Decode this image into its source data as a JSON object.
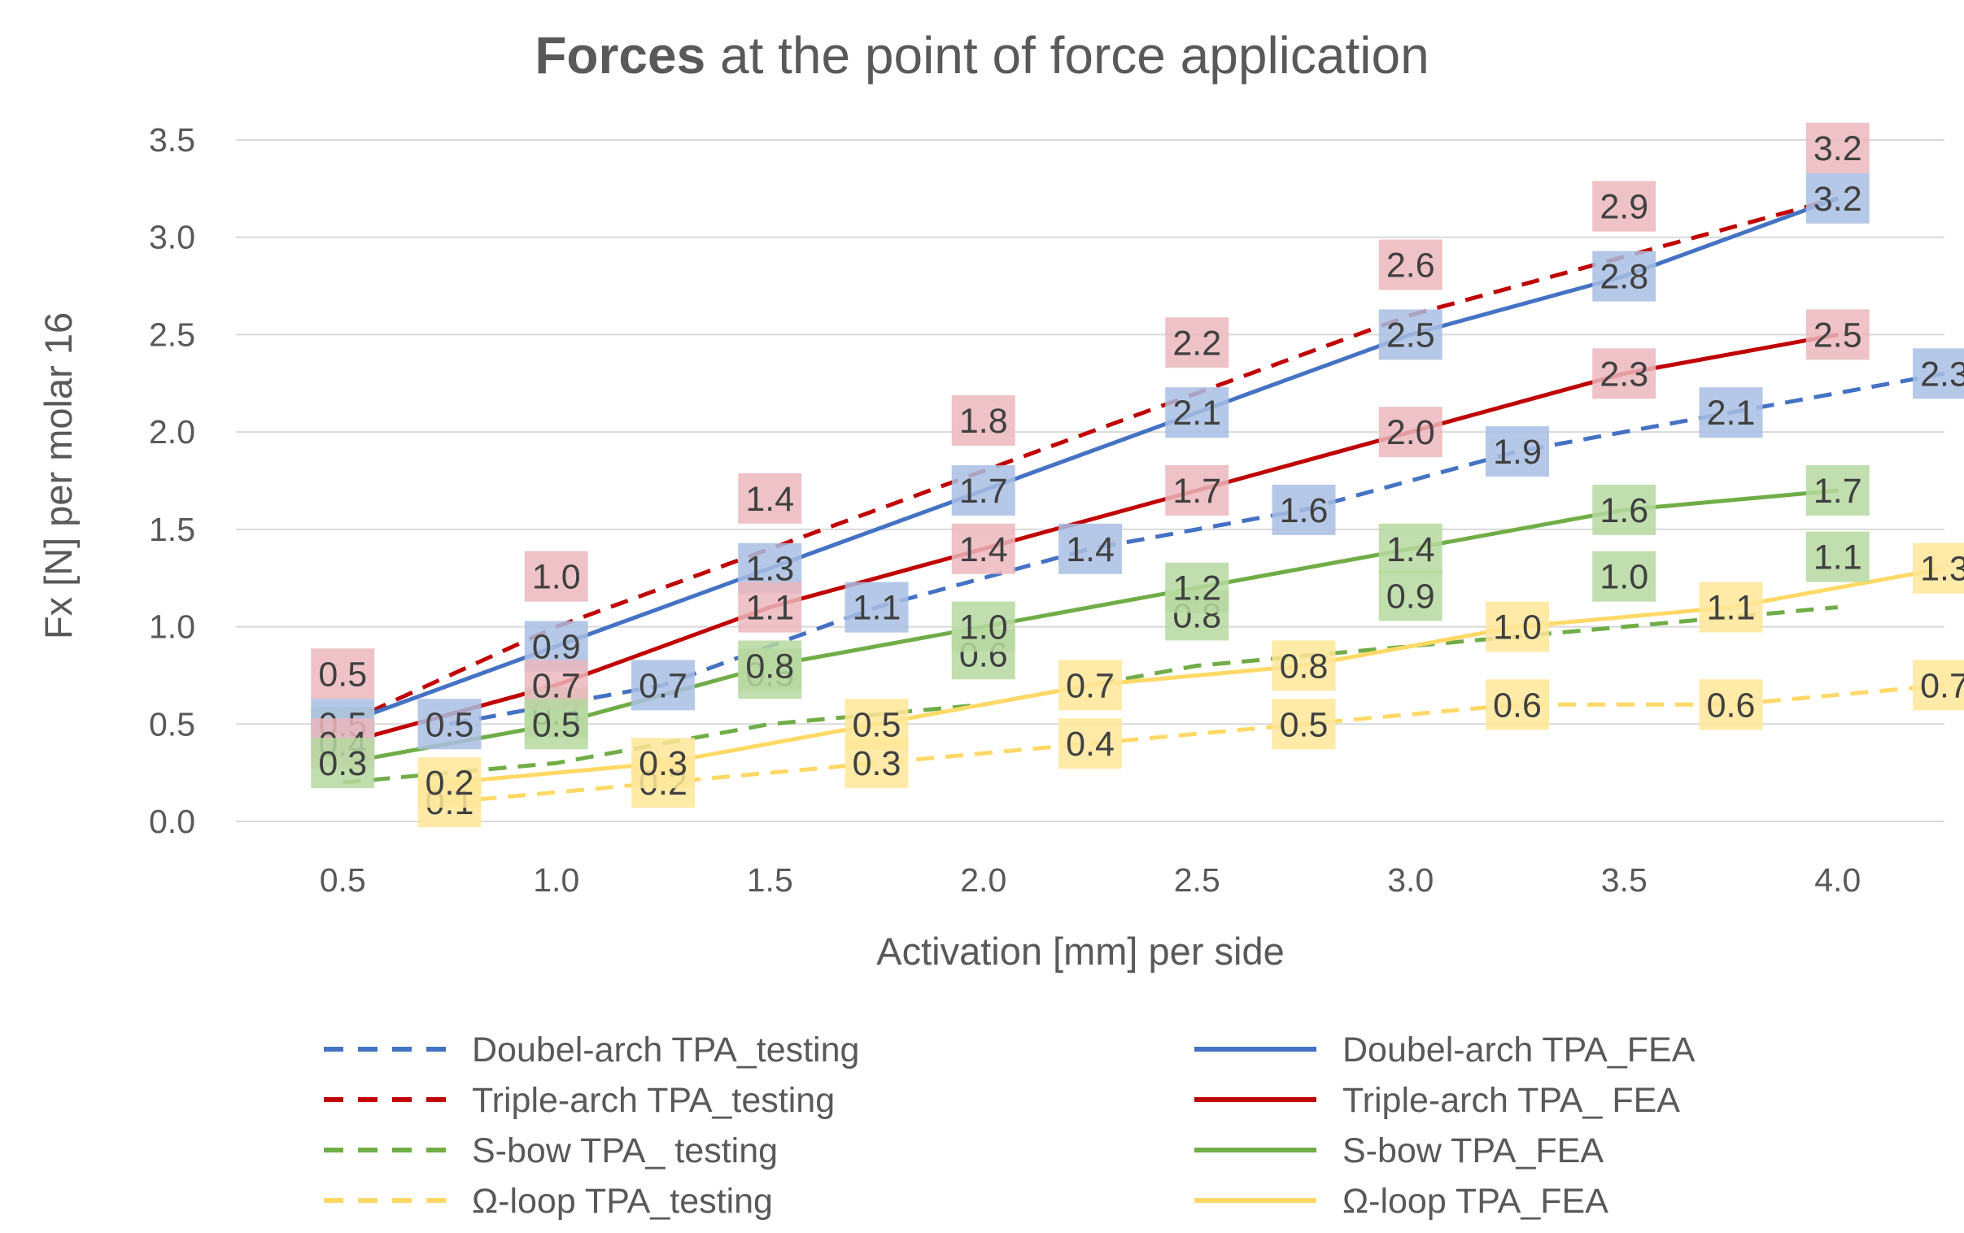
{
  "chart_data": {
    "type": "line",
    "title_bold": "Forces",
    "title_rest": " at the point of force application",
    "xlabel": "Activation [mm] per side",
    "ylabel": "Fx [N] per molar 16",
    "ylim": [
      0,
      3.5
    ],
    "yticks": [
      "0.0",
      "0.5",
      "1.0",
      "1.5",
      "2.0",
      "2.5",
      "3.0",
      "3.5"
    ],
    "categories": [
      "0.5",
      "1.0",
      "1.5",
      "2.0",
      "2.5",
      "3.0",
      "3.5",
      "4.0"
    ],
    "grid": true,
    "legend_position": "bottom",
    "series": [
      {
        "name": "Doubel-arch TPA_testing",
        "color": "#4472C4",
        "label_color": "#A9BEE3",
        "dash": true,
        "offset": 0.5,
        "values": [
          0.5,
          0.7,
          1.1,
          1.4,
          1.6,
          1.9,
          2.1,
          2.3
        ],
        "labels": [
          "0.5",
          "0.7",
          "1.1",
          "1.4",
          "1.6",
          "1.9",
          "2.1",
          "2.3"
        ]
      },
      {
        "name": "Triple-arch TPA_testing",
        "color": "#C00000",
        "label_color": "#EBB7BD",
        "dash": true,
        "offset": 0,
        "values": [
          0.5,
          1.0,
          1.4,
          1.8,
          2.2,
          2.6,
          2.9,
          3.2
        ],
        "labels": [
          "0.5",
          "1.0",
          "1.4",
          "1.8",
          "2.2",
          "2.6",
          "2.9",
          "3.2"
        ]
      },
      {
        "name": "S-bow TPA_ testing",
        "color": "#70AD47",
        "label_color": "#B6D9A0",
        "dash": true,
        "offset": 0,
        "values": [
          0.2,
          0.3,
          0.5,
          0.6,
          0.8,
          0.9,
          1.0,
          1.1
        ],
        "labels": [
          "0.2",
          "0.3",
          "0.5",
          "0.6",
          "0.8",
          "0.9",
          "1.0",
          "1.1"
        ]
      },
      {
        "name": "Ω-loop TPA_testing",
        "color": "#FFD966",
        "label_color": "#FFE699",
        "dash": true,
        "offset": 0.5,
        "values": [
          0.1,
          0.2,
          0.3,
          0.4,
          0.5,
          0.6,
          0.6,
          0.7
        ],
        "labels": [
          "0.1",
          "0.2",
          "0.3",
          "0.4",
          "0.5",
          "0.6",
          "0.6",
          "0.7"
        ]
      },
      {
        "name": "Doubel-arch TPA_FEA",
        "color": "#4472C4",
        "label_color": "#A9BEE3",
        "dash": false,
        "offset": 0,
        "values": [
          0.5,
          0.9,
          1.3,
          1.7,
          2.1,
          2.5,
          2.8,
          3.2
        ],
        "labels": [
          "0.5",
          "0.9",
          "1.3",
          "1.7",
          "2.1",
          "2.5",
          "2.8",
          "3.2"
        ]
      },
      {
        "name": "Triple-arch TPA_ FEA",
        "color": "#C00000",
        "label_color": "#EBB7BD",
        "dash": false,
        "offset": 0,
        "values": [
          0.4,
          0.7,
          1.1,
          1.4,
          1.7,
          2.0,
          2.3,
          2.5
        ],
        "labels": [
          "0.4",
          "0.7",
          "1.1",
          "1.4",
          "1.7",
          "2.0",
          "2.3",
          "2.5"
        ]
      },
      {
        "name": "S-bow TPA_FEA",
        "color": "#70AD47",
        "label_color": "#B6D9A0",
        "dash": false,
        "offset": 0,
        "values": [
          0.3,
          0.5,
          0.8,
          1.0,
          1.2,
          1.4,
          1.6,
          1.7
        ],
        "labels": [
          "0.3",
          "0.5",
          "0.8",
          "1.0",
          "1.2",
          "1.4",
          "1.6",
          "1.7"
        ]
      },
      {
        "name": "Ω-loop TPA_FEA",
        "color": "#FFD966",
        "label_color": "#FFE699",
        "dash": false,
        "offset": 0.5,
        "values": [
          0.2,
          0.3,
          0.5,
          0.7,
          0.8,
          1.0,
          1.1,
          1.3
        ],
        "labels": [
          "0.2",
          "0.3",
          "0.5",
          "0.7",
          "0.8",
          "1.0",
          "1.1",
          "1.3"
        ]
      }
    ]
  }
}
